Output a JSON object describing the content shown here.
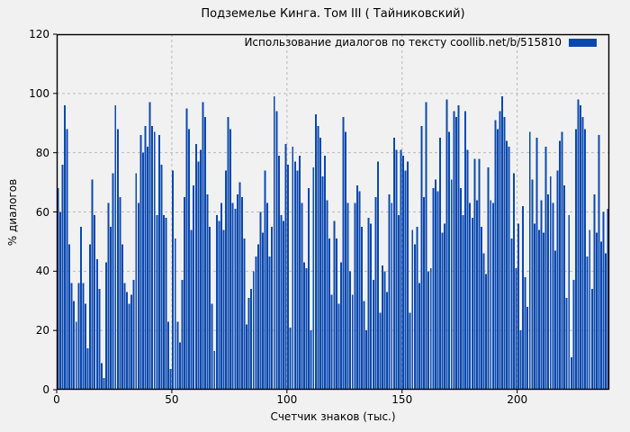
{
  "title": "Подземелье Кинга. Том III ( Тайниковский)",
  "legend": {
    "label": "Использование диалогов по тексту  coollib.net/b/515810"
  },
  "colors": {
    "bar": "#0a48b0",
    "grid": "#b9b9b9",
    "frame": "#000000",
    "background": "#f1f1f1"
  },
  "chart_data": {
    "type": "bar",
    "title": "Подземелье Кинга. Том III ( Тайниковский)",
    "xlabel": "Счетчик знаков (тыс.)",
    "ylabel": "% диалогов",
    "xlim": [
      0,
      240
    ],
    "ylim": [
      0,
      120
    ],
    "x_ticks": [
      0,
      50,
      100,
      150,
      200
    ],
    "y_ticks": [
      0,
      20,
      40,
      60,
      80,
      100,
      120
    ],
    "grid": true,
    "grid_style": "dashed",
    "legend_position": "top-right",
    "x_start": 0,
    "x_step": 1,
    "values": [
      68,
      60,
      76,
      96,
      88,
      49,
      36,
      30,
      23,
      36,
      55,
      36,
      29,
      14,
      49,
      71,
      59,
      44,
      34,
      9,
      4,
      43,
      63,
      55,
      73,
      96,
      88,
      65,
      49,
      36,
      33,
      29,
      32,
      37,
      73,
      63,
      86,
      80,
      89,
      82,
      97,
      89,
      87,
      59,
      86,
      76,
      59,
      58,
      23,
      7,
      74,
      51,
      23,
      16,
      37,
      65,
      95,
      88,
      54,
      69,
      83,
      77,
      81,
      97,
      92,
      66,
      55,
      29,
      13,
      59,
      57,
      63,
      54,
      74,
      92,
      88,
      63,
      61,
      66,
      70,
      65,
      51,
      22,
      31,
      34,
      40,
      45,
      49,
      60,
      53,
      74,
      63,
      45,
      55,
      99,
      94,
      79,
      59,
      57,
      83,
      76,
      21,
      82,
      77,
      74,
      79,
      63,
      43,
      41,
      68,
      20,
      75,
      93,
      89,
      85,
      72,
      79,
      64,
      51,
      32,
      57,
      51,
      29,
      43,
      92,
      87,
      63,
      40,
      32,
      63,
      69,
      67,
      55,
      30,
      20,
      58,
      56,
      37,
      65,
      77,
      26,
      42,
      40,
      33,
      66,
      63,
      85,
      81,
      59,
      81,
      79,
      74,
      77,
      26,
      54,
      49,
      55,
      36,
      89,
      65,
      97,
      40,
      41,
      68,
      71,
      67,
      85,
      53,
      56,
      98,
      87,
      71,
      94,
      92,
      96,
      68,
      59,
      94,
      81,
      63,
      58,
      78,
      64,
      78,
      55,
      46,
      39,
      75,
      64,
      63,
      91,
      88,
      94,
      99,
      92,
      84,
      82,
      51,
      73,
      41,
      56,
      20,
      62,
      38,
      28,
      87,
      71,
      56,
      85,
      54,
      64,
      53,
      82,
      66,
      72,
      63,
      47,
      74,
      84,
      87,
      69,
      31,
      59,
      11,
      37,
      88,
      98,
      96,
      92,
      88,
      45,
      54,
      34,
      66,
      53,
      86,
      50,
      60,
      46,
      61
    ]
  }
}
